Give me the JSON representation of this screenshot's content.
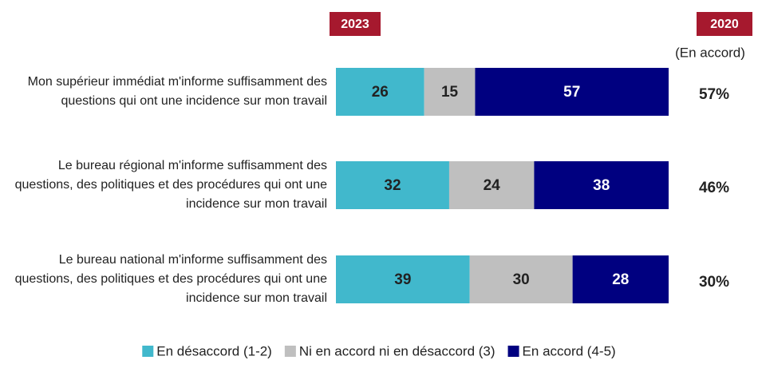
{
  "chart_data": {
    "type": "bar",
    "column_header": "2023",
    "categories": [
      "Mon supérieur immédiat m'informe suffisamment des questions qui ont une incidence sur mon travail",
      "Le bureau régional m'informe suffisamment des questions, des politiques et des procédures qui ont une incidence sur mon travail",
      "Le bureau national m'informe suffisamment des questions, des politiques et des procédures qui ont une incidence sur mon travail"
    ],
    "series": [
      {
        "name": "En désaccord (1-2)",
        "color": "#41b8cc",
        "values": [
          26,
          32,
          39
        ]
      },
      {
        "name": "Ni en accord ni en désaccord (3)",
        "color": "#bfbfbf",
        "values": [
          15,
          24,
          30
        ]
      },
      {
        "name": "En accord (4-5)",
        "color": "#000080",
        "values": [
          57,
          38,
          28
        ]
      }
    ],
    "comparison": {
      "header": "2020",
      "subheader": "(En accord)",
      "values": [
        57,
        46,
        30
      ],
      "value_labels": [
        "57%",
        "46%",
        "30%"
      ]
    },
    "header_color": "#a6192e"
  }
}
